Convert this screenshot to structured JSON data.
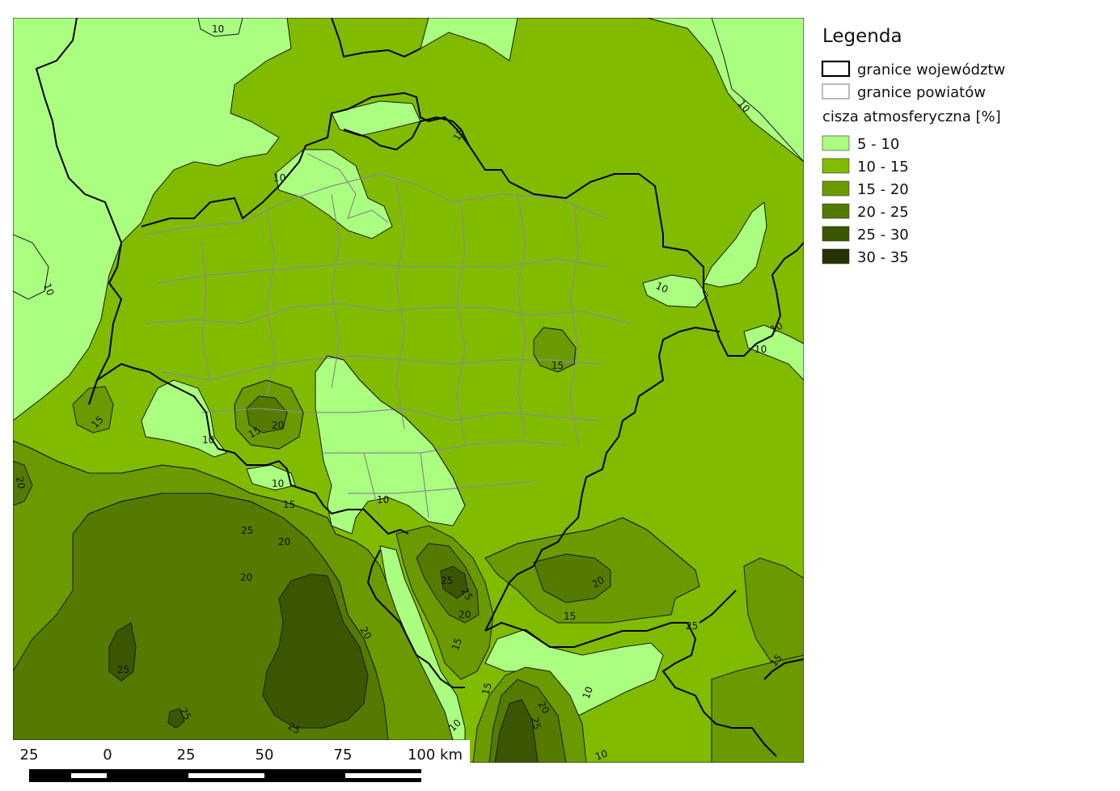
{
  "colors": {
    "class_5_10": "#aaff80",
    "class_10_15": "#80bb00",
    "class_15_20": "#6b9a00",
    "class_20_25": "#557a00",
    "class_25_30": "#3b5600",
    "class_30_35": "#243300",
    "voiv_border": "#000000",
    "county_border": "#8c8c8c",
    "isoline": "#1a1a1a"
  },
  "legend": {
    "title": "Legenda",
    "voivodeship_border": "granice województw",
    "county_border": "granice powiatów",
    "variable": "cisza atmosferyczna [%]",
    "classes": [
      "5 - 10",
      "10 - 15",
      "15 - 20",
      "20 - 25",
      "25 - 30",
      "30 - 35"
    ]
  },
  "isoline_labels": [
    "10",
    "10",
    "10",
    "10",
    "10",
    "10",
    "10",
    "10",
    "10",
    "10",
    "10",
    "10",
    "10",
    "15",
    "15",
    "15",
    "15",
    "15",
    "15",
    "15",
    "15",
    "15",
    "20",
    "20",
    "20",
    "20",
    "20",
    "20",
    "20",
    "20",
    "25",
    "25",
    "25",
    "25",
    "25",
    "25",
    "25",
    "25"
  ],
  "scale_bar": {
    "ticks": [
      "25",
      "0",
      "25",
      "50",
      "75",
      "100 km"
    ]
  }
}
